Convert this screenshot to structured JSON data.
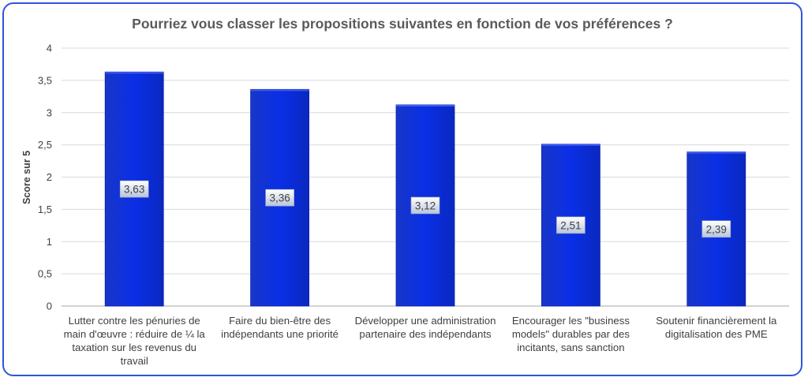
{
  "chart_data": {
    "type": "bar",
    "title": "Pourriez vous classer les propositions suivantes en fonction de vos préférences ?",
    "ylabel": "Score sur 5",
    "xlabel": "",
    "ylim": [
      0,
      4
    ],
    "yticks": [
      "0",
      "0,5",
      "1",
      "1,5",
      "2",
      "2,5",
      "3",
      "3,5",
      "4"
    ],
    "categories": [
      "Lutter contre les pénuries de main d'œuvre : réduire de ¼ la taxation sur les revenus du travail",
      "Faire du bien-être des indépendants une priorité",
      "Développer une administration partenaire des indépendants",
      "Encourager les \"business models\" durables par des incitants, sans sanction",
      "Soutenir financièrement la digitalisation des PME"
    ],
    "values": [
      3.63,
      3.36,
      3.12,
      2.51,
      2.39
    ],
    "data_labels": [
      "3,63",
      "3,36",
      "3,12",
      "2,51",
      "2,39"
    ],
    "grid": true,
    "bar_color": "#0a2fdc",
    "frame_color": "#2f56d8"
  }
}
